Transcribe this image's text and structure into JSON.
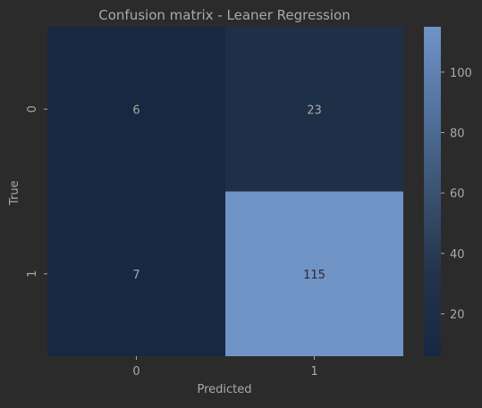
{
  "chart_data": {
    "type": "heatmap",
    "title": "Confusion matrix - Leaner Regression",
    "xlabel": "Predicted",
    "ylabel": "True",
    "x_categories": [
      "0",
      "1"
    ],
    "y_categories": [
      "0",
      "1"
    ],
    "values": [
      [
        6,
        23
      ],
      [
        7,
        115
      ]
    ],
    "colorbar": {
      "range": [
        6,
        115
      ],
      "ticks": [
        20,
        40,
        60,
        80,
        100
      ]
    },
    "colors": {
      "background": "#2b2b2b",
      "low": "#172842",
      "high": "#7093c6",
      "text": "#a9a9a9",
      "cell_text_light": "#a7a7a7",
      "cell_text_dark": "#2b2b2b"
    }
  }
}
